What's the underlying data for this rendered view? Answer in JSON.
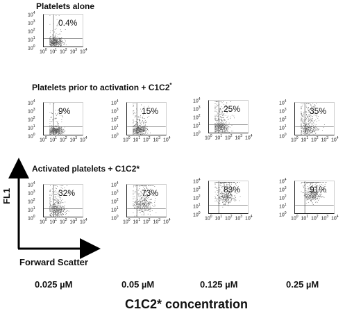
{
  "chart_data": {
    "type": "scatter",
    "rows": [
      {
        "title": "Platelets alone",
        "title_sup": "",
        "panels": [
          {
            "pct": "0.4%",
            "cluster": [
              1.15,
              0.6,
              0.9,
              0.55
            ],
            "scatter": 0.05
          }
        ]
      },
      {
        "title": "Platelets prior to activation + C1C2",
        "title_sup": "*",
        "panels": [
          {
            "pct": "9%",
            "cluster": [
              1.15,
              0.55,
              0.9,
              0.5
            ],
            "scatter": 0.12
          },
          {
            "pct": "15%",
            "cluster": [
              1.2,
              0.6,
              0.95,
              0.55
            ],
            "scatter": 0.18
          },
          {
            "pct": "25%",
            "cluster": [
              1.2,
              0.7,
              1.0,
              0.6
            ],
            "scatter": 0.28
          },
          {
            "pct": "35%",
            "cluster": [
              1.3,
              0.8,
              1.0,
              0.65
            ],
            "scatter": 0.38
          }
        ]
      },
      {
        "title": "Activated platelets + C1C2*",
        "title_sup": "",
        "panels": [
          {
            "pct": "32%",
            "cluster": [
              1.3,
              0.9,
              1.0,
              0.8
            ],
            "scatter": 0.2
          },
          {
            "pct": "73%",
            "cluster": [
              1.6,
              1.5,
              1.1,
              0.9
            ],
            "scatter": 0.3
          },
          {
            "pct": "83%",
            "cluster": [
              1.7,
              2.1,
              1.1,
              0.8
            ],
            "scatter": 0.3
          },
          {
            "pct": "91%",
            "cluster": [
              1.8,
              2.3,
              1.0,
              0.7
            ],
            "scatter": 0.3
          }
        ]
      }
    ],
    "x_ticks": [
      "10",
      "10",
      "10",
      "10",
      "10"
    ],
    "x_tick_exp": [
      "0",
      "1",
      "2",
      "3",
      "4"
    ],
    "y_ticks": [
      "10",
      "10",
      "10",
      "10",
      "10"
    ],
    "y_tick_exp": [
      "0",
      "1",
      "2",
      "3",
      "4"
    ],
    "xlim": [
      0,
      4
    ],
    "ylim": [
      0,
      4
    ],
    "gate": {
      "x": 1,
      "y": 1
    },
    "xlabel": "Forward Scatter",
    "ylabel": "FL1",
    "concentrations": [
      "0.025 µM",
      "0.05 µM",
      "0.125 µM",
      "0.25 µM"
    ],
    "concentration_label": "C1C2* concentration",
    "dot_color": "#555555"
  }
}
